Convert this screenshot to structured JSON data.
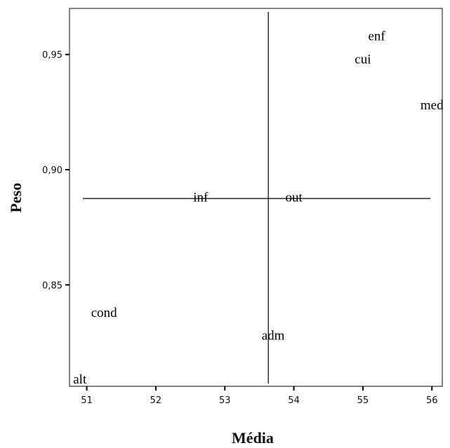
{
  "chart_data": {
    "type": "scatter",
    "xlabel": "Média",
    "ylabel": "Peso",
    "xlim": [
      50.75,
      56.15
    ],
    "ylim": [
      0.806,
      0.97
    ],
    "xticks": [
      "51",
      "52",
      "53",
      "54",
      "55",
      "56"
    ],
    "xtick_values": [
      51,
      52,
      53,
      54,
      55,
      56
    ],
    "yticks": [
      "0,85",
      "0,90",
      "0,95"
    ],
    "ytick_values": [
      0.85,
      0.9,
      0.95
    ],
    "grid": false,
    "reference_lines": {
      "x_mean": 53.63,
      "y_mean": 0.8875
    },
    "points": [
      {
        "label": "enf",
        "x": 55.2,
        "y": 0.958
      },
      {
        "label": "cui",
        "x": 55.0,
        "y": 0.948
      },
      {
        "label": "med",
        "x": 56.0,
        "y": 0.928
      },
      {
        "label": "inf",
        "x": 52.65,
        "y": 0.888
      },
      {
        "label": "out",
        "x": 54.0,
        "y": 0.888
      },
      {
        "label": "cond",
        "x": 51.25,
        "y": 0.838
      },
      {
        "label": "adm",
        "x": 53.7,
        "y": 0.828
      },
      {
        "label": "alt",
        "x": 50.9,
        "y": 0.809
      }
    ]
  }
}
